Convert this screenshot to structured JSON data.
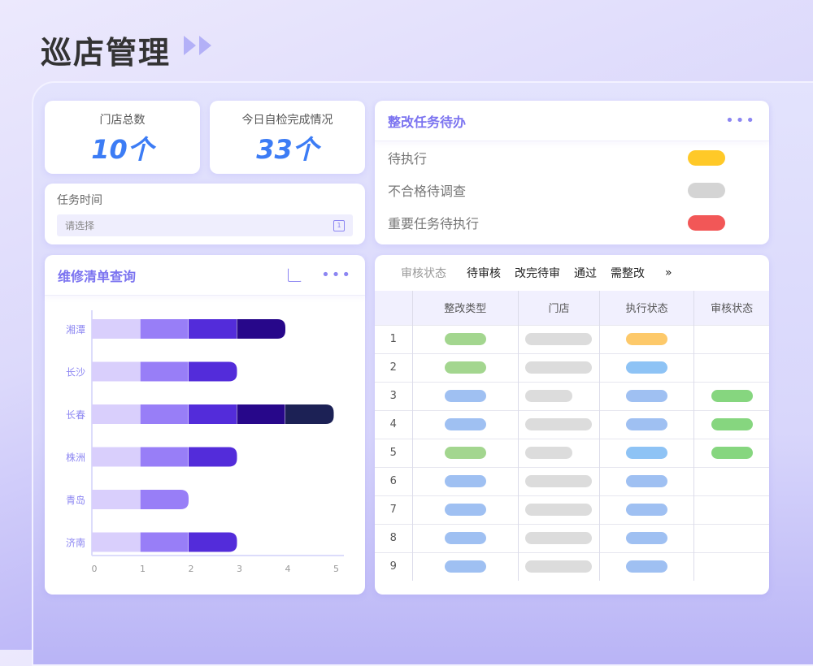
{
  "header": {
    "title": "巡店管理",
    "arrow_icon": "double-play-icon"
  },
  "stats": [
    {
      "label": "门店总数",
      "value": "10个"
    },
    {
      "label": "今日自检完成情况",
      "value": "33个"
    }
  ],
  "task_time": {
    "label": "任务时间",
    "placeholder": "请选择",
    "icon": "calendar-icon"
  },
  "todo": {
    "title": "整改任务待办",
    "more": "•••",
    "items": [
      {
        "label": "待执行",
        "color": "#ffc928"
      },
      {
        "label": "不合格待调查",
        "color": "#d4d4d4"
      },
      {
        "label": "重要任务待执行",
        "color": "#f25757"
      }
    ]
  },
  "repair": {
    "title": "维修清单查询",
    "more": "•••",
    "export_icon": "share-export-icon"
  },
  "chart_data": {
    "type": "bar",
    "orientation": "horizontal",
    "stacked": true,
    "categories": [
      "湘潭",
      "长沙",
      "长春",
      "株洲",
      "青岛",
      "济南"
    ],
    "series": [
      {
        "values": [
          1,
          1,
          1,
          1,
          1,
          1
        ],
        "color": "#d9cffc"
      },
      {
        "values": [
          1,
          1,
          1,
          1,
          1,
          1
        ],
        "color": "#987ef7"
      },
      {
        "values": [
          1,
          1,
          1,
          1,
          0,
          1
        ],
        "color": "#532cda"
      },
      {
        "values": [
          1,
          0,
          1,
          0,
          0,
          0
        ],
        "color": "#27078a"
      },
      {
        "values": [
          0,
          0,
          1,
          0,
          0,
          0
        ],
        "color": "#1c2155"
      }
    ],
    "xlim": [
      0,
      5
    ],
    "xticks": [
      "0",
      "1",
      "2",
      "3",
      "4",
      "5"
    ],
    "grid": false
  },
  "review": {
    "filter_label": "审核状态",
    "filters": [
      "待审核",
      "改完待审",
      "通过",
      "需整改"
    ],
    "more": "»",
    "columns": [
      "",
      "整改类型",
      "门店",
      "执行状态",
      "审核状态"
    ],
    "rows": [
      {
        "n": "1",
        "type": "#a3d68f",
        "store": "long",
        "exec": "#fdc96a",
        "audit": ""
      },
      {
        "n": "2",
        "type": "#a3d68f",
        "store": "long",
        "exec": "#8ec3f5",
        "audit": ""
      },
      {
        "n": "3",
        "type": "#9fc0f2",
        "store": "short",
        "exec": "#9fc0f2",
        "audit": "#86d67f"
      },
      {
        "n": "4",
        "type": "#9fc0f2",
        "store": "long",
        "exec": "#9fc0f2",
        "audit": "#86d67f"
      },
      {
        "n": "5",
        "type": "#a3d68f",
        "store": "short",
        "exec": "#8ec3f5",
        "audit": "#86d67f"
      },
      {
        "n": "6",
        "type": "#9fc0f2",
        "store": "long",
        "exec": "#9fc0f2",
        "audit": ""
      },
      {
        "n": "7",
        "type": "#9fc0f2",
        "store": "long",
        "exec": "#9fc0f2",
        "audit": ""
      },
      {
        "n": "8",
        "type": "#9fc0f2",
        "store": "long",
        "exec": "#9fc0f2",
        "audit": ""
      },
      {
        "n": "9",
        "type": "#9fc0f2",
        "store": "long",
        "exec": "#9fc0f2",
        "audit": ""
      }
    ]
  }
}
